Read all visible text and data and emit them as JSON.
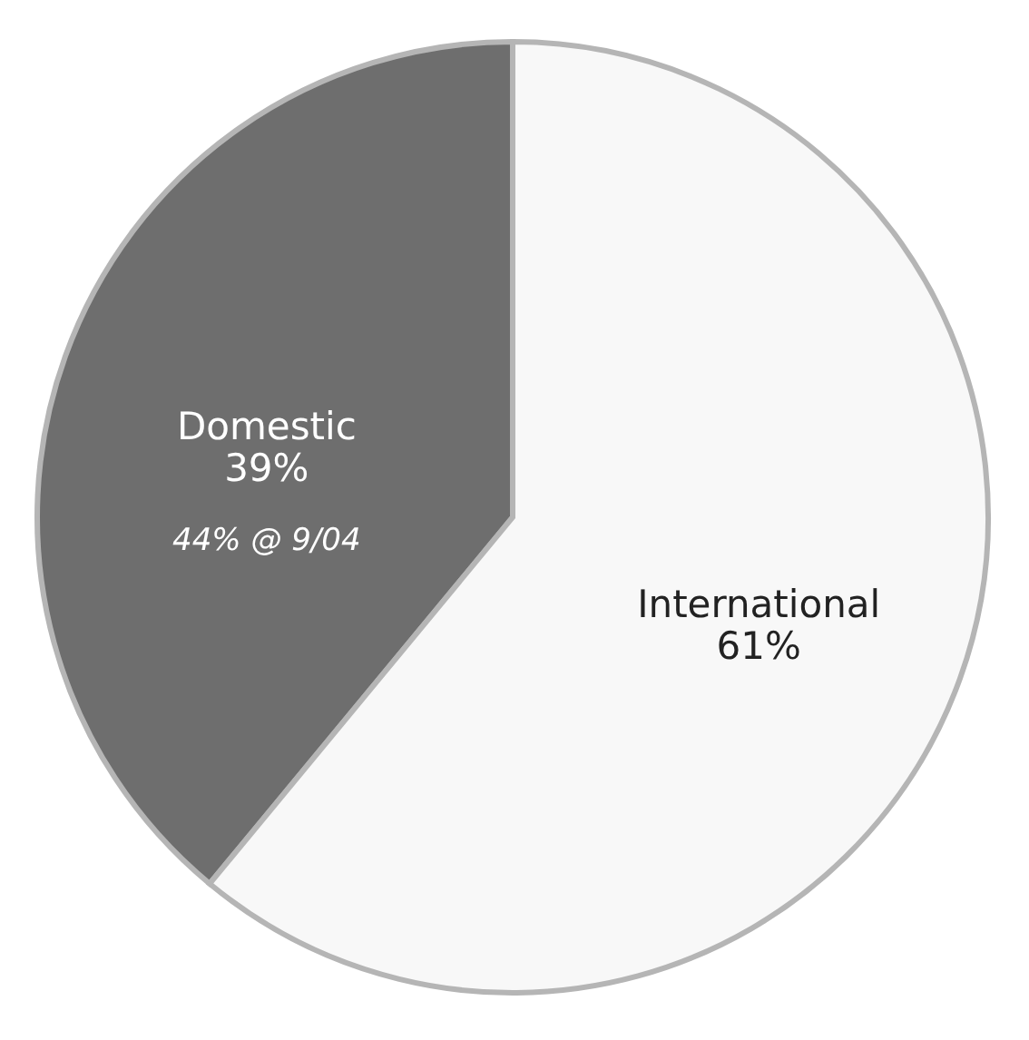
{
  "chart_data": {
    "type": "pie",
    "categories": [
      "Domestic",
      "International"
    ],
    "values": [
      39,
      61
    ],
    "colors": [
      "#6e6e6e",
      "#f8f8f8"
    ],
    "value_labels": [
      "39%",
      "61%"
    ],
    "annotations": [
      "44% @ 9/04"
    ]
  }
}
